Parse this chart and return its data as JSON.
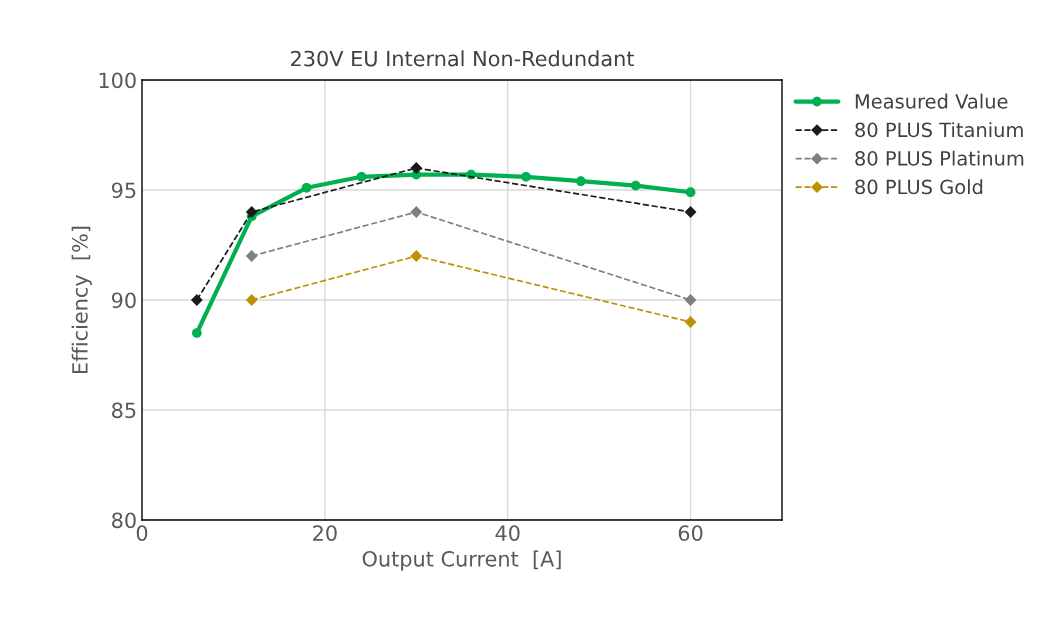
{
  "chart_data": {
    "type": "line",
    "title": "230V EU Internal Non-Redundant",
    "xlabel": "Output Current  [A]",
    "ylabel": "Efficiency  [%]",
    "series": [
      {
        "name": "Measured Value",
        "color": "#00b050",
        "x": [
          6,
          12,
          18,
          24,
          30,
          36,
          42,
          48,
          54,
          60
        ],
        "values": [
          88.5,
          93.8,
          95.1,
          95.6,
          95.7,
          95.7,
          95.6,
          95.4,
          95.2,
          94.9
        ],
        "marker": "circle",
        "line_style": "solid"
      },
      {
        "name": "80 PLUS Titanium",
        "color": "#1a1a1a",
        "x": [
          6,
          12,
          30,
          60
        ],
        "values": [
          90,
          94,
          96,
          94
        ],
        "marker": "diamond",
        "line_style": "dashed"
      },
      {
        "name": "80 PLUS Platinum",
        "color": "#7f7f7f",
        "x": [
          12,
          30,
          60
        ],
        "values": [
          92,
          94,
          90
        ],
        "marker": "diamond",
        "line_style": "dashed"
      },
      {
        "name": "80 PLUS Gold",
        "color": "#bf9000",
        "x": [
          12,
          30,
          60
        ],
        "values": [
          90,
          92,
          89
        ],
        "marker": "diamond",
        "line_style": "dashed"
      }
    ],
    "xlim": [
      0,
      70
    ],
    "xticks": [
      0,
      20,
      40,
      60
    ],
    "ylim": [
      80,
      100
    ],
    "yticks": [
      80,
      85,
      90,
      95,
      100
    ],
    "grid": true,
    "legend": "top right"
  }
}
